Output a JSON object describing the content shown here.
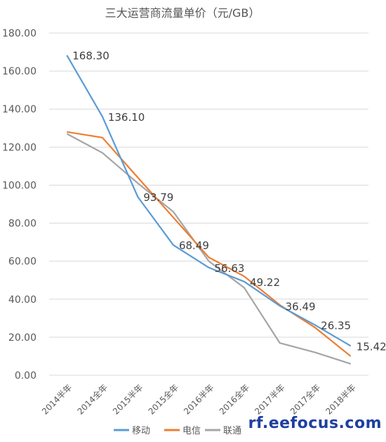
{
  "watermark": "rf.eefocus.com",
  "chart_data": {
    "type": "line",
    "title": "三大运营商流量单价（元/GB）",
    "categories": [
      "2014半年",
      "2014全年",
      "2015半年",
      "2015全年",
      "2016半年",
      "2016全年",
      "2017半年",
      "2017全年",
      "2018半年"
    ],
    "ylim": [
      0,
      180
    ],
    "yticks": [
      "0.00",
      "20.00",
      "40.00",
      "60.00",
      "80.00",
      "100.00",
      "120.00",
      "140.00",
      "160.00",
      "180.00"
    ],
    "grid": true,
    "legend_position": "bottom",
    "series": [
      {
        "name": "移动",
        "color": "#5b9bd5",
        "values": [
          168.3,
          136.1,
          93.79,
          68.49,
          56.63,
          49.22,
          36.49,
          26.35,
          15.42
        ],
        "labels": [
          "168.30",
          "136.10",
          "93.79",
          "68.49",
          "56.63",
          "49.22",
          "36.49",
          "26.35",
          "15.42"
        ]
      },
      {
        "name": "电信",
        "color": "#ed7d31",
        "values": [
          128,
          125,
          104,
          83,
          62,
          52,
          37,
          25,
          10
        ]
      },
      {
        "name": "联通",
        "color": "#a5a5a5",
        "values": [
          127,
          117,
          101,
          86,
          60,
          46,
          17,
          12,
          6
        ]
      }
    ]
  }
}
